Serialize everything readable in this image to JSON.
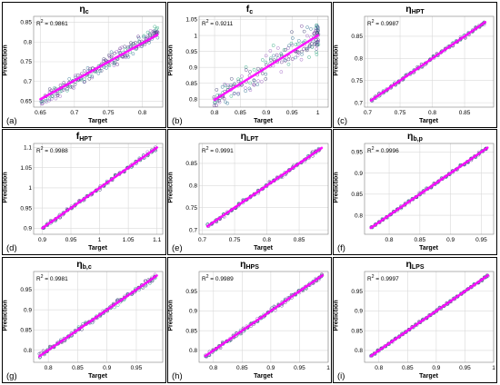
{
  "colors": {
    "grid": "#d9d9d9",
    "axis": "#808080",
    "fit": "#ff00ff",
    "markers": [
      "#3a3a6e",
      "#5f2a8a",
      "#27a37a",
      "#9a5bbf",
      "#2b6f8f"
    ]
  },
  "chart_data": [
    {
      "type": "scatter",
      "label": "(a)",
      "title_main": "η",
      "title_sub": "c",
      "r2_value": "= 0.9861",
      "xlabel": "Target",
      "ylabel": "Prediction",
      "xlim": [
        0.64,
        0.83
      ],
      "ylim": [
        0.635,
        0.865
      ],
      "xticks": [
        0.65,
        0.7,
        0.75,
        0.8
      ],
      "xtick_labels": [
        "0.65",
        "0.7",
        "0.75",
        "0.8"
      ],
      "yticks": [
        0.65,
        0.7,
        0.75,
        0.8,
        0.85
      ],
      "ytick_labels": [
        "0.65",
        "0.7",
        "0.75",
        "0.8",
        "0.85"
      ],
      "fit": [
        [
          0.65,
          0.655
        ],
        [
          0.822,
          0.818
        ]
      ],
      "scatter_spread": 0.016,
      "x_points": [
        0.652,
        0.658,
        0.663,
        0.667,
        0.672,
        0.676,
        0.68,
        0.684,
        0.689,
        0.693,
        0.698,
        0.702,
        0.706,
        0.71,
        0.715,
        0.719,
        0.723,
        0.727,
        0.731,
        0.735,
        0.739,
        0.743,
        0.747,
        0.751,
        0.755,
        0.759,
        0.763,
        0.767,
        0.771,
        0.775,
        0.779,
        0.783,
        0.787,
        0.791,
        0.795,
        0.799,
        0.803,
        0.806,
        0.809,
        0.812,
        0.815,
        0.818,
        0.82,
        0.822
      ]
    },
    {
      "type": "scatter",
      "label": "(b)",
      "title_main": "f",
      "title_sub": "c",
      "r2_value": "= 0.9211",
      "xlabel": "Target",
      "ylabel": "Prediction",
      "xlim": [
        0.77,
        1.02
      ],
      "ylim": [
        0.775,
        1.06
      ],
      "xticks": [
        0.8,
        0.85,
        0.9,
        0.95,
        1
      ],
      "xtick_labels": [
        "0.8",
        "0.85",
        "0.9",
        "0.95",
        "1"
      ],
      "yticks": [
        0.8,
        0.85,
        0.9,
        0.95,
        1,
        1.05
      ],
      "ytick_labels": [
        "0.8",
        "0.85",
        "0.9",
        "0.95",
        "1",
        "1.05"
      ],
      "fit": [
        [
          0.8,
          0.798
        ],
        [
          1.0,
          1.0
        ]
      ],
      "scatter_spread": 0.05,
      "x_points": [
        0.8,
        0.805,
        0.81,
        0.815,
        0.82,
        0.826,
        0.832,
        0.838,
        0.845,
        0.852,
        0.86,
        0.868,
        0.876,
        0.884,
        0.892,
        0.9,
        0.908,
        0.915,
        0.922,
        0.929,
        0.936,
        0.943,
        0.95,
        0.956,
        0.962,
        0.968,
        0.974,
        0.979,
        0.984,
        0.988,
        0.992,
        0.995,
        0.998,
        1.0,
        1.0,
        1.0,
        0.999,
        0.997
      ]
    },
    {
      "type": "scatter",
      "label": "(c)",
      "title_main": "η",
      "title_sub": "HPT",
      "r2_value": "= 0.9987",
      "xlabel": "Target",
      "ylabel": "Prediction",
      "xlim": [
        0.695,
        0.895
      ],
      "ylim": [
        0.69,
        0.895
      ],
      "xticks": [
        0.7,
        0.75,
        0.8,
        0.85
      ],
      "xtick_labels": [
        "0.7",
        "0.75",
        "0.8",
        "0.85"
      ],
      "yticks": [
        0.7,
        0.75,
        0.8,
        0.85
      ],
      "ytick_labels": [
        "0.7",
        "0.75",
        "0.8",
        "0.85"
      ],
      "fit": [
        [
          0.705,
          0.705
        ],
        [
          0.882,
          0.882
        ]
      ],
      "scatter_spread": 0.004,
      "x_points": [
        0.706,
        0.712,
        0.718,
        0.724,
        0.73,
        0.736,
        0.742,
        0.748,
        0.754,
        0.76,
        0.766,
        0.772,
        0.778,
        0.784,
        0.79,
        0.796,
        0.802,
        0.808,
        0.814,
        0.82,
        0.826,
        0.832,
        0.838,
        0.844,
        0.85,
        0.856,
        0.862,
        0.868,
        0.873,
        0.877,
        0.88
      ]
    },
    {
      "type": "scatter",
      "label": "(d)",
      "title_main": "f",
      "title_sub": "HPT",
      "r2_value": "= 0.9988",
      "xlabel": "Target",
      "ylabel": "Prediction",
      "xlim": [
        0.885,
        1.11
      ],
      "ylim": [
        0.885,
        1.11
      ],
      "xticks": [
        0.9,
        0.95,
        1,
        1.05,
        1.1
      ],
      "xtick_labels": [
        "0.9",
        "0.95",
        "1",
        "1.05",
        "1.1"
      ],
      "yticks": [
        0.9,
        0.95,
        1,
        1.05,
        1.1
      ],
      "ytick_labels": [
        "0.9",
        "0.95",
        "1",
        "1.05",
        "1.1"
      ],
      "fit": [
        [
          0.9,
          0.9
        ],
        [
          1.1,
          1.1
        ]
      ],
      "scatter_spread": 0.004,
      "x_points": [
        0.902,
        0.909,
        0.916,
        0.923,
        0.93,
        0.937,
        0.944,
        0.951,
        0.958,
        0.965,
        0.972,
        0.979,
        0.986,
        0.993,
        1.0,
        1.007,
        1.014,
        1.021,
        1.028,
        1.035,
        1.042,
        1.049,
        1.056,
        1.063,
        1.07,
        1.077,
        1.084,
        1.091,
        1.097
      ]
    },
    {
      "type": "scatter",
      "label": "(e)",
      "title_main": "η",
      "title_sub": "LPT",
      "r2_value": "= 0.9991",
      "xlabel": "Target",
      "ylabel": "Prediction",
      "xlim": [
        0.695,
        0.895
      ],
      "ylim": [
        0.69,
        0.895
      ],
      "xticks": [
        0.7,
        0.75,
        0.8,
        0.85
      ],
      "xtick_labels": [
        "0.7",
        "0.75",
        "0.8",
        "0.85"
      ],
      "yticks": [
        0.7,
        0.75,
        0.8,
        0.85
      ],
      "ytick_labels": [
        "0.7",
        "0.75",
        "0.8",
        "0.85"
      ],
      "fit": [
        [
          0.708,
          0.708
        ],
        [
          0.885,
          0.885
        ]
      ],
      "scatter_spread": 0.004,
      "x_points": [
        0.709,
        0.715,
        0.721,
        0.727,
        0.733,
        0.739,
        0.745,
        0.751,
        0.757,
        0.763,
        0.769,
        0.775,
        0.781,
        0.787,
        0.793,
        0.799,
        0.805,
        0.811,
        0.817,
        0.823,
        0.829,
        0.835,
        0.841,
        0.847,
        0.853,
        0.859,
        0.865,
        0.871,
        0.876,
        0.881
      ]
    },
    {
      "type": "scatter",
      "label": "(f)",
      "title_main": "η",
      "title_sub": "b,p",
      "r2_value": "= 0.9996",
      "xlabel": "Target",
      "ylabel": "Prediction",
      "xlim": [
        0.76,
        0.97
      ],
      "ylim": [
        0.755,
        0.97
      ],
      "xticks": [
        0.8,
        0.85,
        0.9,
        0.95
      ],
      "xtick_labels": [
        "0.8",
        "0.85",
        "0.9",
        "0.95"
      ],
      "yticks": [
        0.8,
        0.85,
        0.9,
        0.95
      ],
      "ytick_labels": [
        "0.8",
        "0.85",
        "0.9",
        "0.95"
      ],
      "fit": [
        [
          0.77,
          0.77
        ],
        [
          0.96,
          0.96
        ]
      ],
      "scatter_spread": 0.003,
      "x_points": [
        0.772,
        0.778,
        0.784,
        0.79,
        0.796,
        0.802,
        0.808,
        0.814,
        0.82,
        0.826,
        0.832,
        0.838,
        0.844,
        0.85,
        0.856,
        0.862,
        0.868,
        0.874,
        0.88,
        0.886,
        0.892,
        0.898,
        0.904,
        0.91,
        0.916,
        0.922,
        0.928,
        0.934,
        0.94,
        0.946,
        0.952,
        0.957
      ]
    },
    {
      "type": "scatter",
      "label": "(g)",
      "title_main": "η",
      "title_sub": "b,c",
      "r2_value": "= 0.9981",
      "xlabel": "Target",
      "ylabel": "Prediction",
      "xlim": [
        0.775,
        0.995
      ],
      "ylim": [
        0.77,
        0.995
      ],
      "xticks": [
        0.8,
        0.85,
        0.9,
        0.95
      ],
      "xtick_labels": [
        "0.8",
        "0.85",
        "0.9",
        "0.95"
      ],
      "yticks": [
        0.8,
        0.85,
        0.9,
        0.95
      ],
      "ytick_labels": [
        "0.8",
        "0.85",
        "0.9",
        "0.95"
      ],
      "fit": [
        [
          0.785,
          0.785
        ],
        [
          0.985,
          0.985
        ]
      ],
      "scatter_spread": 0.006,
      "x_points": [
        0.786,
        0.792,
        0.798,
        0.804,
        0.81,
        0.816,
        0.822,
        0.828,
        0.834,
        0.84,
        0.846,
        0.852,
        0.858,
        0.864,
        0.87,
        0.876,
        0.882,
        0.888,
        0.894,
        0.9,
        0.906,
        0.912,
        0.918,
        0.924,
        0.93,
        0.936,
        0.942,
        0.948,
        0.954,
        0.96,
        0.966,
        0.972,
        0.977,
        0.982
      ]
    },
    {
      "type": "scatter",
      "label": "(h)",
      "title_main": "η",
      "title_sub": "HPS",
      "r2_value": "= 0.9989",
      "xlabel": "Target",
      "ylabel": "Prediction",
      "xlim": [
        0.775,
        1.0
      ],
      "ylim": [
        0.77,
        1.0
      ],
      "xticks": [
        0.8,
        0.85,
        0.9,
        0.95,
        1
      ],
      "xtick_labels": [
        "0.8",
        "0.85",
        "0.9",
        "0.95",
        "1"
      ],
      "yticks": [
        0.8,
        0.85,
        0.9,
        0.95
      ],
      "ytick_labels": [
        "0.8",
        "0.85",
        "0.9",
        "0.95"
      ],
      "fit": [
        [
          0.786,
          0.786
        ],
        [
          0.99,
          0.99
        ]
      ],
      "scatter_spread": 0.005,
      "x_points": [
        0.787,
        0.793,
        0.799,
        0.805,
        0.811,
        0.817,
        0.823,
        0.829,
        0.835,
        0.841,
        0.847,
        0.853,
        0.859,
        0.865,
        0.871,
        0.877,
        0.883,
        0.889,
        0.895,
        0.901,
        0.907,
        0.913,
        0.919,
        0.925,
        0.931,
        0.937,
        0.943,
        0.949,
        0.955,
        0.961,
        0.967,
        0.973,
        0.979,
        0.985,
        0.989
      ]
    },
    {
      "type": "scatter",
      "label": "(i)",
      "title_main": "η",
      "title_sub": "LPS",
      "r2_value": "= 0.9997",
      "xlabel": "Target",
      "ylabel": "Prediction",
      "xlim": [
        0.775,
        1.0
      ],
      "ylim": [
        0.77,
        1.0
      ],
      "xticks": [
        0.8,
        0.85,
        0.9,
        0.95,
        1
      ],
      "xtick_labels": [
        "0.8",
        "0.85",
        "0.9",
        "0.95",
        "1"
      ],
      "yticks": [
        0.8,
        0.85,
        0.9,
        0.95
      ],
      "ytick_labels": [
        "0.8",
        "0.85",
        "0.9",
        "0.95"
      ],
      "fit": [
        [
          0.786,
          0.786
        ],
        [
          0.99,
          0.99
        ]
      ],
      "scatter_spread": 0.002,
      "x_points": [
        0.787,
        0.793,
        0.799,
        0.805,
        0.811,
        0.817,
        0.823,
        0.829,
        0.835,
        0.841,
        0.847,
        0.853,
        0.859,
        0.865,
        0.871,
        0.877,
        0.883,
        0.889,
        0.895,
        0.901,
        0.907,
        0.913,
        0.919,
        0.925,
        0.931,
        0.937,
        0.943,
        0.949,
        0.955,
        0.961,
        0.967,
        0.973,
        0.979,
        0.985,
        0.989
      ]
    }
  ]
}
